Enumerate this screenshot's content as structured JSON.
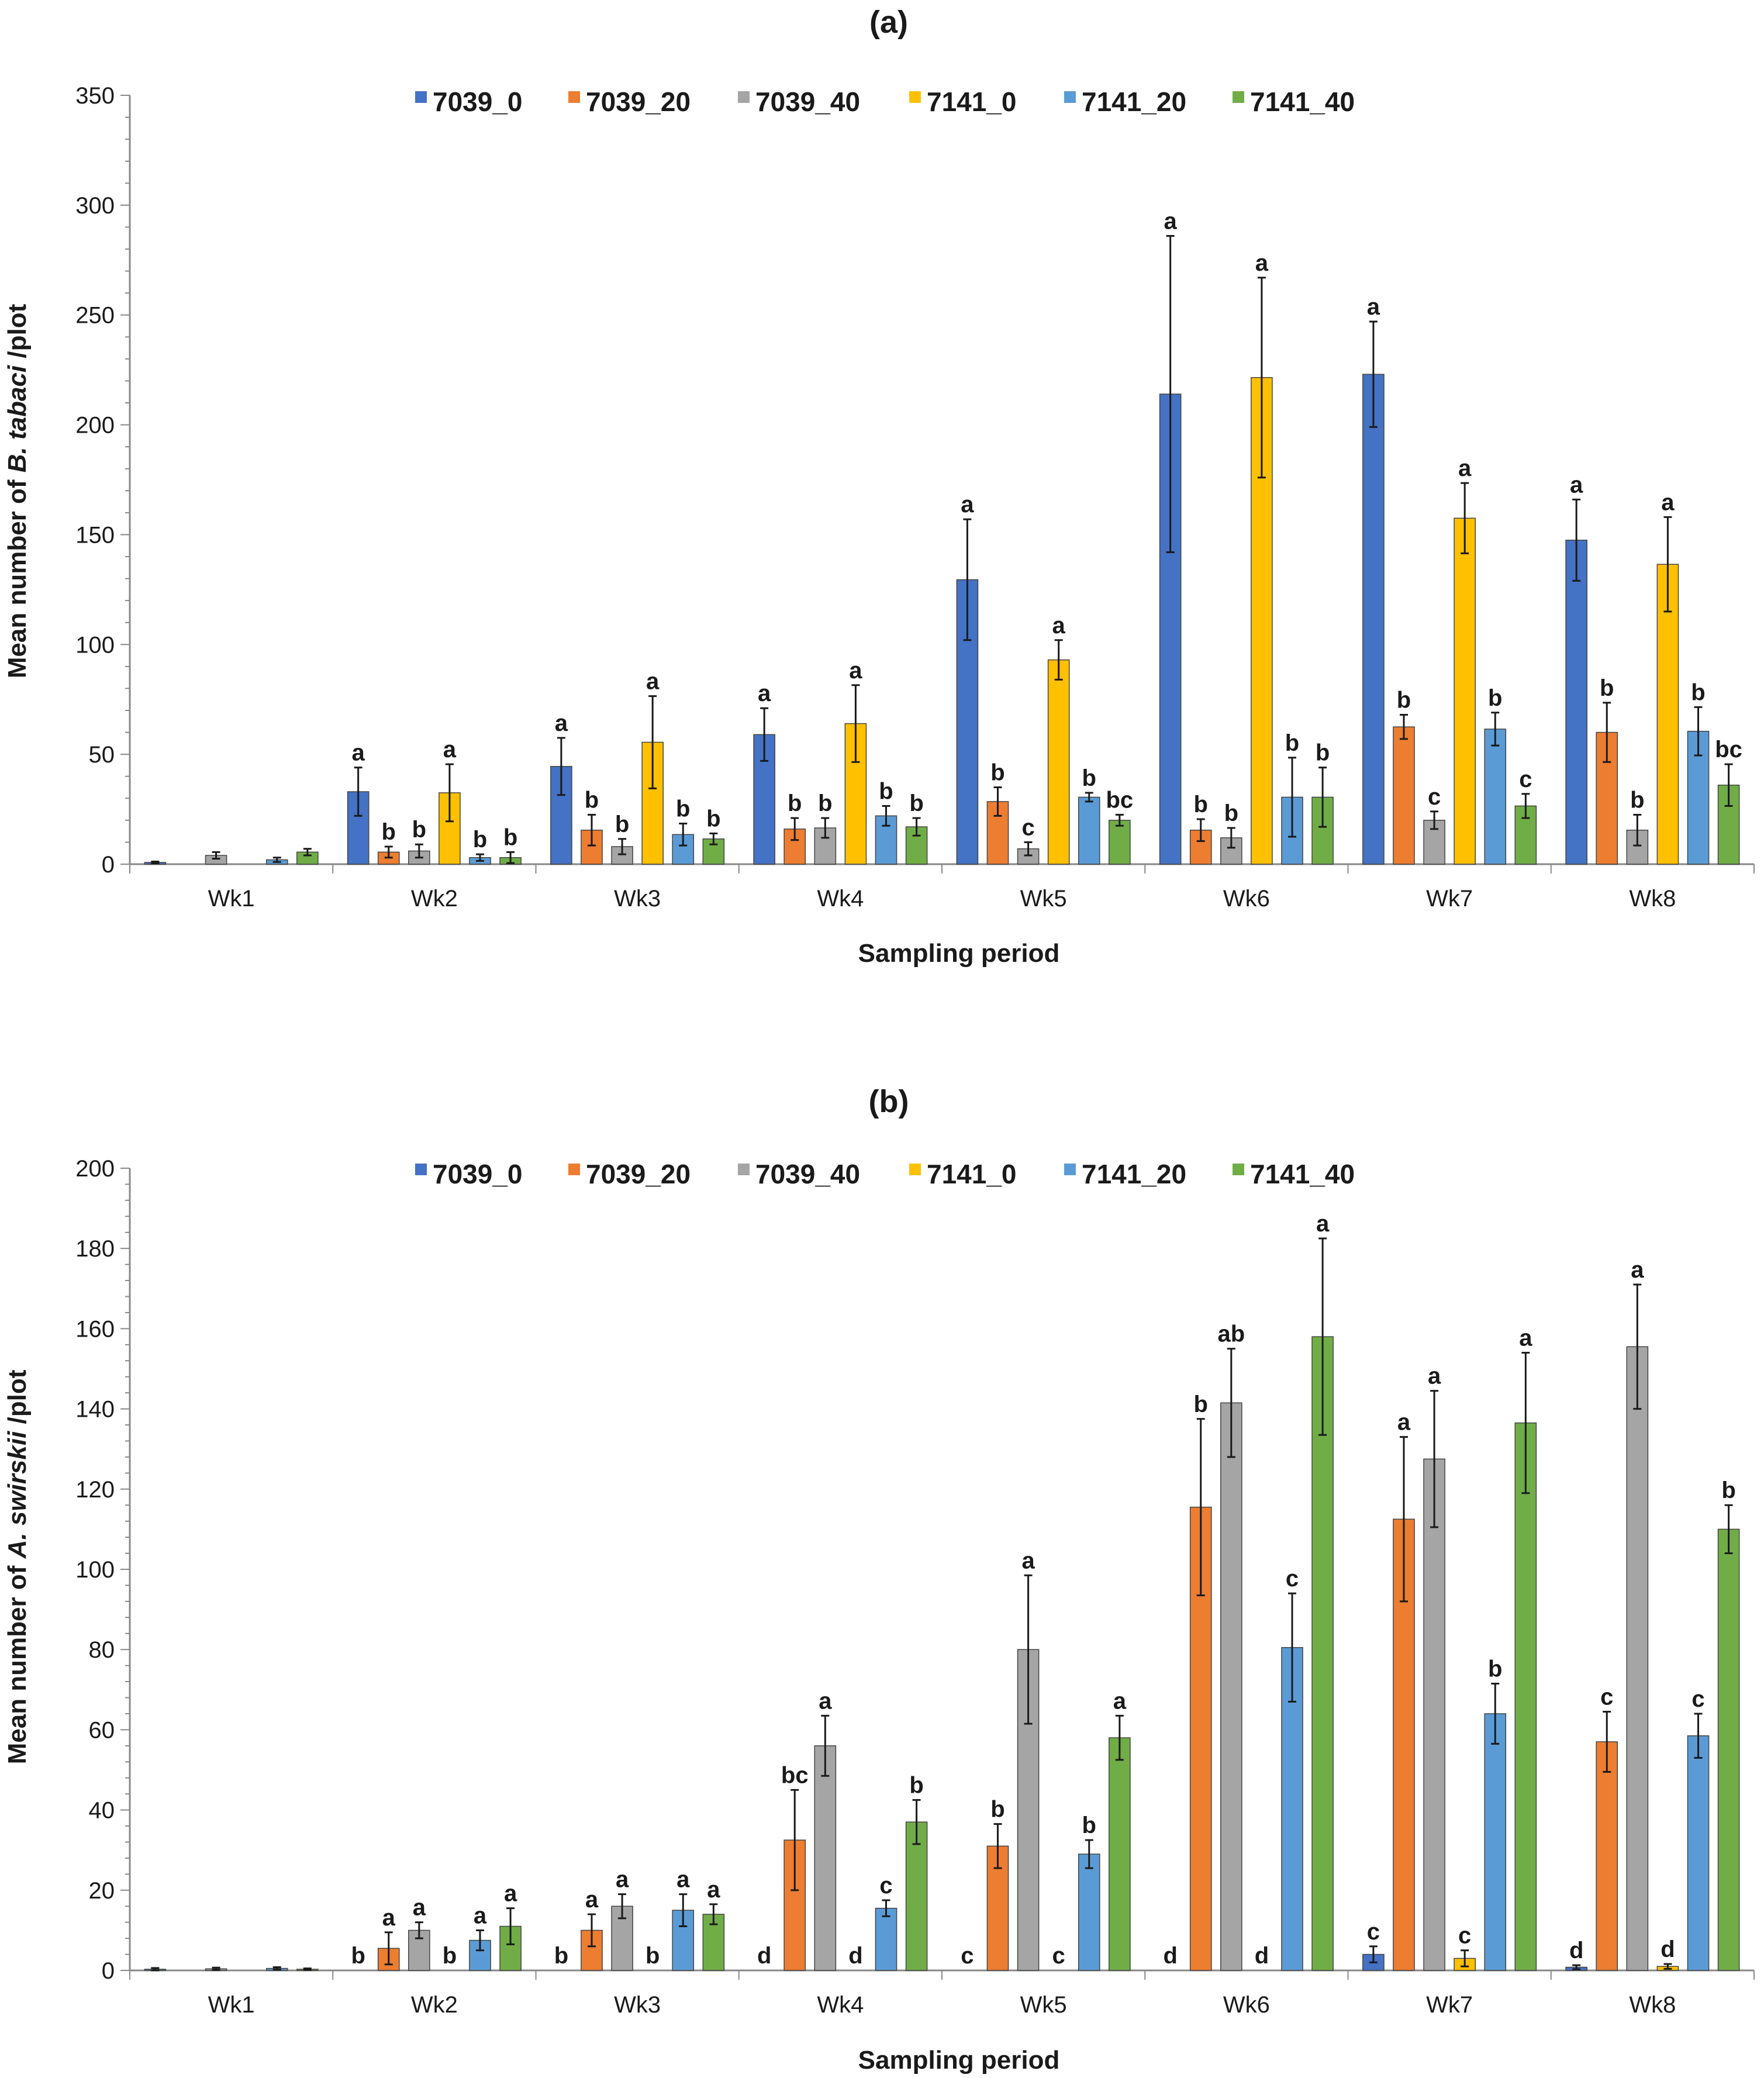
{
  "chart_data": [
    {
      "type": "bar",
      "panel": "(a)",
      "xlabel": "Sampling period",
      "ylabel_parts": [
        "Mean number of ",
        "B. tabaci",
        "/plot"
      ],
      "ylim": [
        0,
        350
      ],
      "yticks": [
        0,
        50,
        100,
        150,
        200,
        250,
        300,
        350
      ],
      "categories": [
        "Wk1",
        "Wk2",
        "Wk3",
        "Wk4",
        "Wk5",
        "Wk6",
        "Wk7",
        "Wk8"
      ],
      "series": [
        {
          "name": "7039_0",
          "color": "#4472C4",
          "values": [
            0.8,
            33,
            44.5,
            59,
            129.5,
            214,
            223,
            147.5
          ],
          "errors": [
            0.4,
            11,
            13,
            12,
            27.5,
            72,
            24,
            18.5
          ],
          "letters": [
            "",
            "a",
            "a",
            "a",
            "a",
            "a",
            "a",
            "a"
          ]
        },
        {
          "name": "7039_20",
          "color": "#ED7D31",
          "values": [
            0,
            5.5,
            15.5,
            16,
            28.5,
            15.5,
            62.5,
            60
          ],
          "errors": [
            0,
            2.5,
            7,
            5,
            6.5,
            5,
            5.5,
            13.5
          ],
          "letters": [
            "",
            "b",
            "b",
            "b",
            "b",
            "b",
            "b",
            "b"
          ]
        },
        {
          "name": "7039_40",
          "color": "#A5A5A5",
          "values": [
            4,
            6,
            8,
            16.5,
            7,
            12,
            20,
            15.5
          ],
          "errors": [
            1.5,
            3,
            3.5,
            4.5,
            3,
            4.5,
            4,
            7
          ],
          "letters": [
            "",
            "b",
            "b",
            "b",
            "c",
            "b",
            "c",
            "b"
          ]
        },
        {
          "name": "7141_0",
          "color": "#FFC000",
          "values": [
            0,
            32.5,
            55.5,
            64,
            93,
            221.5,
            157.5,
            136.5
          ],
          "errors": [
            0,
            13,
            21,
            17.5,
            9,
            45.5,
            16,
            21.5
          ],
          "letters": [
            "",
            "a",
            "a",
            "a",
            "a",
            "a",
            "a",
            "a"
          ]
        },
        {
          "name": "7141_20",
          "color": "#5B9BD5",
          "values": [
            2,
            3,
            13.5,
            22,
            30.5,
            30.5,
            61.5,
            60.5
          ],
          "errors": [
            1,
            1.5,
            5,
            4.5,
            2,
            18,
            7.5,
            11
          ],
          "letters": [
            "",
            "b",
            "b",
            "b",
            "b",
            "b",
            "b",
            "b"
          ]
        },
        {
          "name": "7141_40",
          "color": "#70AD47",
          "values": [
            5.5,
            3,
            11.5,
            17,
            20,
            30.5,
            26.5,
            36
          ],
          "errors": [
            1.5,
            2.5,
            2.5,
            4,
            2.5,
            13.5,
            5.5,
            9.5
          ],
          "letters": [
            "",
            "b",
            "b",
            "b",
            "bc",
            "b",
            "c",
            "bc"
          ]
        }
      ]
    },
    {
      "type": "bar",
      "panel": "(b)",
      "xlabel": "Sampling period",
      "ylabel_parts": [
        "Mean number of ",
        "A. swirskii",
        "/plot"
      ],
      "ylim": [
        0,
        200
      ],
      "yticks": [
        0,
        20,
        40,
        60,
        80,
        100,
        120,
        140,
        160,
        180,
        200
      ],
      "categories": [
        "Wk1",
        "Wk2",
        "Wk3",
        "Wk4",
        "Wk5",
        "Wk6",
        "Wk7",
        "Wk8"
      ],
      "series": [
        {
          "name": "7039_0",
          "color": "#4472C4",
          "values": [
            0.3,
            0,
            0,
            0,
            0,
            0,
            4,
            0.8
          ],
          "errors": [
            0.3,
            0,
            0,
            0,
            0,
            0,
            2,
            0.5
          ],
          "letters": [
            "",
            "b",
            "b",
            "d",
            "c",
            "d",
            "c",
            "d"
          ]
        },
        {
          "name": "7039_20",
          "color": "#ED7D31",
          "values": [
            0,
            5.5,
            10,
            32.5,
            31,
            115.5,
            112.5,
            57
          ],
          "errors": [
            0,
            4,
            4,
            12.5,
            5.5,
            22,
            20.5,
            7.5
          ],
          "letters": [
            "",
            "a",
            "a",
            "bc",
            "b",
            "b",
            "a",
            "c"
          ]
        },
        {
          "name": "7039_40",
          "color": "#A5A5A5",
          "values": [
            0.4,
            10,
            16,
            56,
            80,
            141.5,
            127.5,
            155.5
          ],
          "errors": [
            0.3,
            2,
            3,
            7.5,
            18.5,
            13.5,
            17,
            15.5
          ],
          "letters": [
            "",
            "a",
            "a",
            "a",
            "a",
            "ab",
            "a",
            "a"
          ]
        },
        {
          "name": "7141_0",
          "color": "#FFC000",
          "values": [
            0,
            0,
            0,
            0,
            0,
            0,
            3,
            1
          ],
          "errors": [
            0,
            0,
            0,
            0,
            0,
            0,
            2,
            0.6
          ],
          "letters": [
            "",
            "b",
            "b",
            "d",
            "c",
            "d",
            "c",
            "d"
          ]
        },
        {
          "name": "7141_20",
          "color": "#5B9BD5",
          "values": [
            0.5,
            7.5,
            15,
            15.5,
            29,
            80.5,
            64,
            58.5
          ],
          "errors": [
            0.3,
            2.5,
            4,
            2,
            3.5,
            13.5,
            7.5,
            5.5
          ],
          "letters": [
            "",
            "a",
            "a",
            "c",
            "b",
            "c",
            "b",
            "c"
          ]
        },
        {
          "name": "7141_40",
          "color": "#70AD47",
          "values": [
            0.3,
            11,
            14,
            37,
            58,
            158,
            136.5,
            110
          ],
          "errors": [
            0.2,
            4.5,
            2.5,
            5.5,
            5.5,
            24.5,
            17.5,
            6
          ],
          "letters": [
            "",
            "a",
            "a",
            "b",
            "a",
            "a",
            "a",
            "b"
          ]
        }
      ]
    }
  ]
}
